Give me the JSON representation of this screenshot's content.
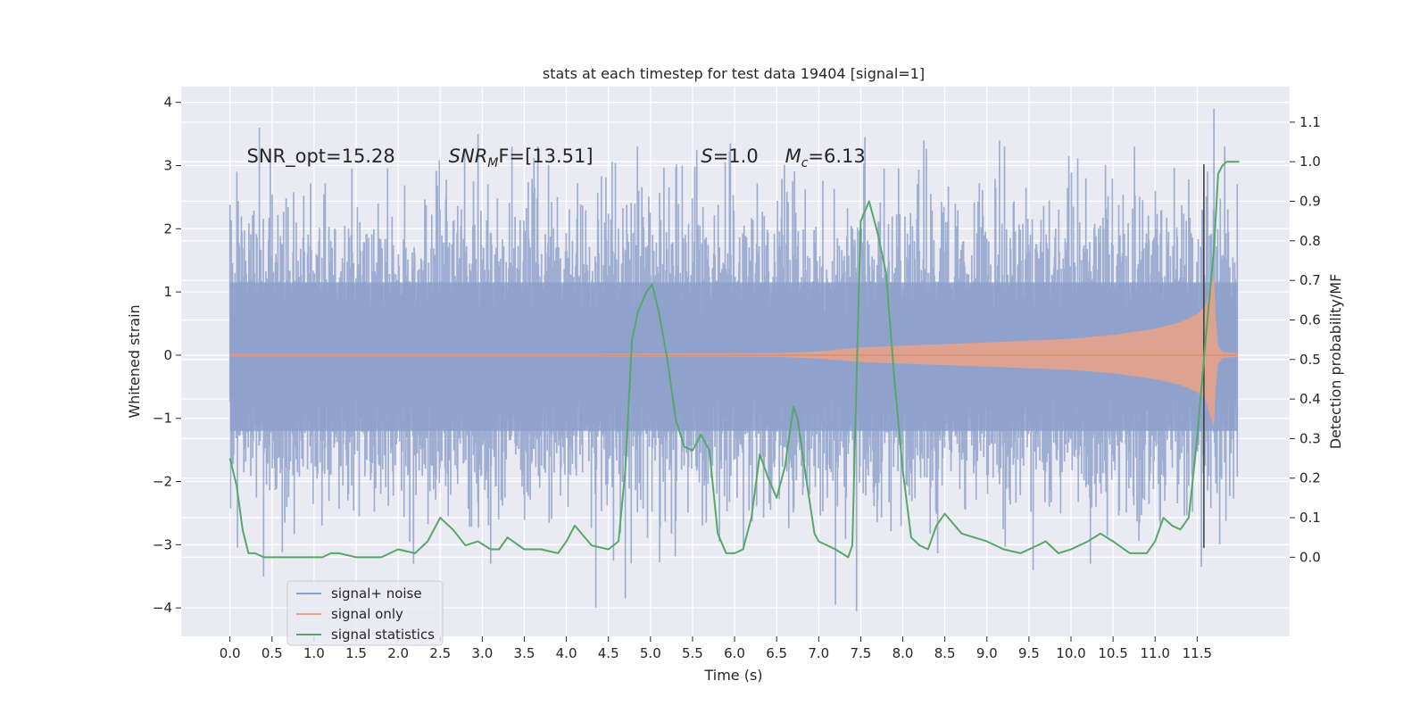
{
  "chart_data": {
    "type": "line",
    "title": "stats at each timestep for test data 19404 [signal=1]",
    "xlabel": "Time (s)",
    "ylabel": "Whitened strain",
    "y2label": "Detection probability/MF",
    "xlim": [
      -0.58,
      12.6
    ],
    "ylim": [
      -4.45,
      4.25
    ],
    "y2lim": [
      -0.2,
      1.19
    ],
    "x_ticks": [
      0.0,
      0.5,
      1.0,
      1.5,
      2.0,
      2.5,
      3.0,
      3.5,
      4.0,
      4.5,
      5.0,
      5.5,
      6.0,
      6.5,
      7.0,
      7.5,
      8.0,
      8.5,
      9.0,
      9.5,
      10.0,
      10.5,
      11.0,
      11.5
    ],
    "x_tick_labels": [
      "0.0",
      "0.5",
      "1.0",
      "1.5",
      "2.0",
      "2.5",
      "3.0",
      "3.5",
      "4.0",
      "4.5",
      "5.0",
      "5.5",
      "6.0",
      "6.5",
      "7.0",
      "7.5",
      "8.0",
      "8.5",
      "9.0",
      "9.5",
      "10.0",
      "10.5",
      "11.0",
      "11.5"
    ],
    "y_ticks": [
      -4,
      -3,
      -2,
      -1,
      0,
      1,
      2,
      3,
      4
    ],
    "y_tick_labels": [
      "−4",
      "−3",
      "−2",
      "−1",
      "0",
      "1",
      "2",
      "3",
      "4"
    ],
    "y2_ticks": [
      0.0,
      0.1,
      0.2,
      0.3,
      0.4,
      0.5,
      0.6,
      0.7,
      0.8,
      0.9,
      1.0,
      1.1
    ],
    "y2_tick_labels": [
      "0.0",
      "0.1",
      "0.2",
      "0.3",
      "0.4",
      "0.5",
      "0.6",
      "0.7",
      "0.8",
      "0.9",
      "1.0",
      "1.1"
    ],
    "grid": true,
    "legend_position": "bottom-left",
    "annotations": [
      {
        "text": "SNR_opt=15.28",
        "x": 0.2,
        "y": 3.05
      },
      {
        "text": "SNR",
        "sub": "M",
        "rest": "F=[13.51]",
        "x": 2.6,
        "y": 3.05
      },
      {
        "text": "S",
        "rest": "=1.0",
        "x": 5.6,
        "y": 3.05
      },
      {
        "text": "M",
        "sub": "c",
        "rest": "=6.13",
        "x": 6.6,
        "y": 3.05
      }
    ],
    "vline": {
      "x": 11.58,
      "y_range": [
        -3.05,
        3.02
      ],
      "color": "#3a3a3a"
    },
    "series": [
      {
        "name": "signal+ noise",
        "color": "#8da0cb",
        "style": "noise",
        "x_range": [
          0.0,
          11.98
        ],
        "envelope_upper": 2.2,
        "envelope_lower": -2.2,
        "core_upper": 1.15,
        "core_lower": -1.2,
        "peaks": [
          {
            "x": 0.35,
            "y": 3.6
          },
          {
            "x": 0.4,
            "y": -3.5
          },
          {
            "x": 1.45,
            "y": 2.95
          },
          {
            "x": 2.95,
            "y": 3.5
          },
          {
            "x": 3.1,
            "y": -3.3
          },
          {
            "x": 4.35,
            "y": -4.0
          },
          {
            "x": 4.7,
            "y": -3.85
          },
          {
            "x": 5.95,
            "y": 3.35
          },
          {
            "x": 7.2,
            "y": -3.95
          },
          {
            "x": 7.45,
            "y": -4.05
          },
          {
            "x": 7.55,
            "y": 3.45
          },
          {
            "x": 8.25,
            "y": 3.4
          },
          {
            "x": 9.15,
            "y": 3.4
          },
          {
            "x": 9.55,
            "y": -3.4
          },
          {
            "x": 11.7,
            "y": 3.9
          },
          {
            "x": 11.55,
            "y": -3.35
          }
        ]
      },
      {
        "name": "signal only",
        "color": "#e6a28a",
        "style": "chirp",
        "x": [
          0.0,
          4.0,
          6.5,
          7.0,
          7.5,
          8.0,
          9.0,
          10.0,
          10.5,
          11.0,
          11.3,
          11.5,
          11.6,
          11.65,
          11.7,
          11.72,
          11.75,
          11.8,
          11.98
        ],
        "amplitude": [
          0.02,
          0.02,
          0.03,
          0.06,
          0.12,
          0.15,
          0.2,
          0.26,
          0.32,
          0.42,
          0.52,
          0.65,
          0.78,
          1.05,
          1.25,
          0.6,
          0.15,
          0.05,
          0.03
        ]
      },
      {
        "name": "signal statistics",
        "color": "#55a868",
        "style": "line",
        "axis": "y2",
        "x": [
          0.0,
          0.08,
          0.15,
          0.22,
          0.3,
          0.4,
          0.5,
          0.6,
          0.8,
          1.0,
          1.1,
          1.2,
          1.3,
          1.5,
          1.8,
          2.0,
          2.2,
          2.35,
          2.5,
          2.65,
          2.8,
          2.95,
          3.1,
          3.2,
          3.3,
          3.5,
          3.7,
          3.9,
          4.0,
          4.1,
          4.3,
          4.5,
          4.62,
          4.7,
          4.78,
          4.85,
          4.95,
          5.02,
          5.1,
          5.2,
          5.3,
          5.4,
          5.5,
          5.6,
          5.7,
          5.8,
          5.9,
          6.0,
          6.1,
          6.2,
          6.3,
          6.4,
          6.5,
          6.6,
          6.7,
          6.75,
          6.85,
          6.95,
          7.0,
          7.2,
          7.35,
          7.4,
          7.45,
          7.5,
          7.6,
          7.7,
          7.8,
          7.9,
          8.0,
          8.1,
          8.2,
          8.3,
          8.4,
          8.5,
          8.7,
          9.0,
          9.2,
          9.4,
          9.6,
          9.7,
          9.85,
          10.0,
          10.2,
          10.35,
          10.5,
          10.7,
          10.9,
          11.0,
          11.1,
          11.2,
          11.3,
          11.4,
          11.5,
          11.6,
          11.7,
          11.75,
          11.8,
          11.85,
          11.9,
          12.0
        ],
        "y": [
          0.25,
          0.18,
          0.07,
          0.01,
          0.01,
          0.0,
          0.0,
          0.0,
          0.0,
          0.0,
          0.0,
          0.01,
          0.01,
          0.0,
          0.0,
          0.02,
          0.01,
          0.04,
          0.1,
          0.07,
          0.03,
          0.04,
          0.02,
          0.02,
          0.05,
          0.02,
          0.02,
          0.01,
          0.04,
          0.08,
          0.03,
          0.02,
          0.04,
          0.22,
          0.55,
          0.62,
          0.67,
          0.69,
          0.62,
          0.5,
          0.35,
          0.28,
          0.27,
          0.31,
          0.27,
          0.06,
          0.01,
          0.01,
          0.02,
          0.1,
          0.26,
          0.2,
          0.15,
          0.23,
          0.38,
          0.35,
          0.2,
          0.06,
          0.04,
          0.02,
          0.0,
          0.03,
          0.45,
          0.85,
          0.9,
          0.82,
          0.72,
          0.45,
          0.22,
          0.05,
          0.03,
          0.02,
          0.08,
          0.11,
          0.06,
          0.04,
          0.02,
          0.01,
          0.03,
          0.04,
          0.01,
          0.02,
          0.04,
          0.06,
          0.04,
          0.01,
          0.01,
          0.04,
          0.1,
          0.08,
          0.07,
          0.1,
          0.3,
          0.55,
          0.78,
          0.97,
          0.99,
          1.0,
          1.0,
          1.0
        ]
      }
    ]
  }
}
